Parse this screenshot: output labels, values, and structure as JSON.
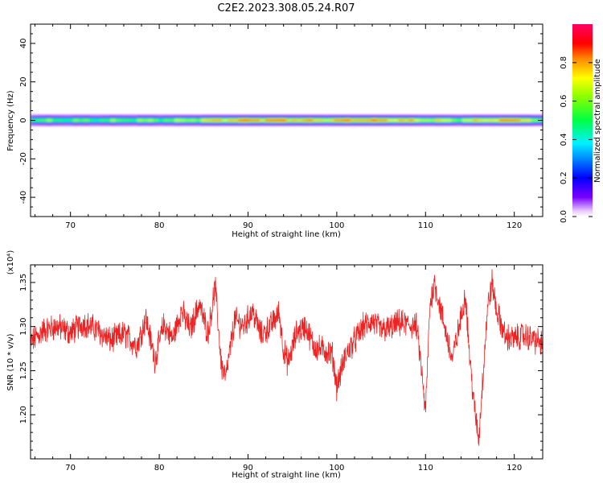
{
  "title": "C2E2.2023.308.05.24.R07",
  "colors": {
    "snr_line": "#ee2222",
    "axis": "#000000",
    "background": "#ffffff"
  },
  "chart_data": [
    {
      "type": "heatmap",
      "xlabel": "Height of straight line (km)",
      "ylabel": "Frequency (Hz)",
      "xlim": [
        65.5,
        123.2
      ],
      "ylim": [
        -50,
        50
      ],
      "xticks": [
        "70",
        "80",
        "90",
        "100",
        "110",
        "120"
      ],
      "xtick_values": [
        70,
        80,
        90,
        100,
        110,
        120
      ],
      "yticks": [
        "40",
        "20",
        "0",
        "-20",
        "-40"
      ],
      "ytick_values": [
        40,
        20,
        0,
        -20,
        -40
      ],
      "colorbar": {
        "label": "Normalized spectral amplitude",
        "range": [
          0,
          1
        ],
        "ticks": [
          "0.0",
          "0.2",
          "0.4",
          "0.6",
          "0.8"
        ],
        "tick_values": [
          0.0,
          0.2,
          0.4,
          0.6,
          0.8
        ],
        "colormap": "rainbow (purple-blue-cyan-green-yellow-red-magenta)"
      },
      "band_center_hz": 0,
      "band_halfwidth_hz": 3,
      "x": [
        66,
        70,
        74,
        78,
        82,
        86,
        90,
        94,
        98,
        102,
        106,
        110,
        114,
        118,
        121,
        123
      ],
      "peak_amplitude": [
        0.55,
        0.55,
        0.55,
        0.6,
        0.6,
        0.75,
        0.85,
        0.85,
        0.75,
        0.85,
        0.8,
        0.7,
        0.65,
        0.8,
        0.85,
        0.5
      ]
    },
    {
      "type": "line",
      "xlabel": "Height of straight line (km)",
      "ylabel": "SNR (10 * v/v)",
      "y_multiplier": "(x10⁴)",
      "xlim": [
        65.5,
        123.2
      ],
      "ylim": [
        1.15,
        1.37
      ],
      "xticks": [
        "70",
        "80",
        "90",
        "100",
        "110",
        "120"
      ],
      "xtick_values": [
        70,
        80,
        90,
        100,
        110,
        120
      ],
      "yticks": [
        "1.20",
        "1.25",
        "1.30",
        "1.35"
      ],
      "ytick_values": [
        1.2,
        1.25,
        1.3,
        1.35
      ],
      "series": [
        {
          "x": [
            65.5,
            67,
            68.5,
            70,
            71.5,
            73,
            74.5,
            76,
            77.5,
            78.5,
            79.5,
            80.5,
            81.5,
            82.5,
            83.5,
            84.5,
            85.5,
            86.3,
            87,
            87.5,
            88.5,
            89.5,
            90.5,
            91.5,
            92.5,
            93.5,
            94,
            94.5,
            95.5,
            96.5,
            97.5,
            98.5,
            99.5,
            100,
            101,
            102,
            103,
            104,
            105,
            106,
            107,
            108,
            109,
            109.5,
            110,
            110.5,
            111,
            112,
            113,
            114,
            114.5,
            115,
            115.5,
            116,
            116.5,
            117,
            117.5,
            118,
            119,
            120,
            121,
            122,
            123.2
          ],
          "y": [
            1.282,
            1.296,
            1.3,
            1.293,
            1.304,
            1.296,
            1.284,
            1.292,
            1.278,
            1.31,
            1.262,
            1.302,
            1.286,
            1.318,
            1.296,
            1.326,
            1.292,
            1.346,
            1.256,
            1.242,
            1.308,
            1.3,
            1.318,
            1.29,
            1.3,
            1.316,
            1.274,
            1.258,
            1.294,
            1.3,
            1.276,
            1.274,
            1.268,
            1.232,
            1.268,
            1.284,
            1.3,
            1.306,
            1.296,
            1.298,
            1.304,
            1.302,
            1.3,
            1.255,
            1.202,
            1.325,
            1.35,
            1.306,
            1.262,
            1.31,
            1.338,
            1.262,
            1.208,
            1.172,
            1.25,
            1.322,
            1.35,
            1.318,
            1.288,
            1.286,
            1.29,
            1.286,
            1.28
          ]
        }
      ]
    }
  ]
}
